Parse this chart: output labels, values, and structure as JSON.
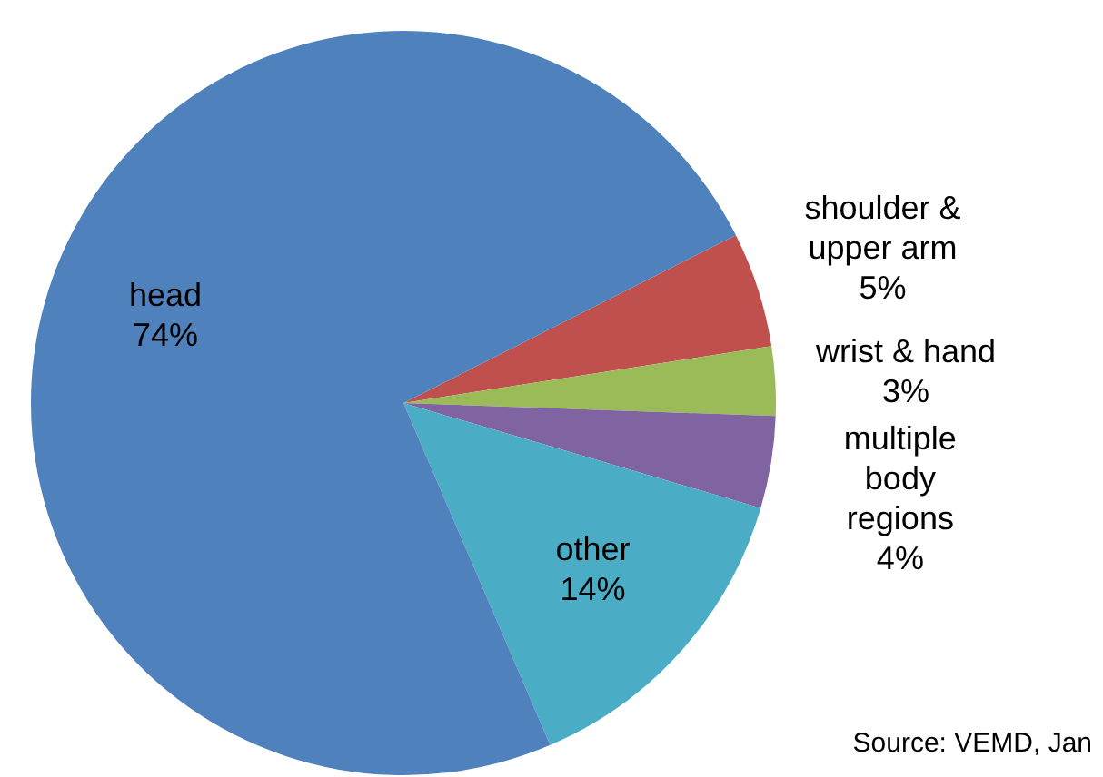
{
  "chart_data": {
    "type": "pie",
    "categories": [
      "shoulder & upper arm",
      "wrist & hand",
      "multiple body regions",
      "other",
      "head"
    ],
    "values": [
      5,
      3,
      4,
      14,
      74
    ],
    "value_labels": [
      "5%",
      "3%",
      "4%",
      "14%",
      "74%"
    ],
    "colors": [
      "#c0504d",
      "#9bbb59",
      "#8064a2",
      "#4bacc6",
      "#4f81bd"
    ],
    "legend": false,
    "annotations": [
      "Source: VEMD, Jan"
    ]
  }
}
